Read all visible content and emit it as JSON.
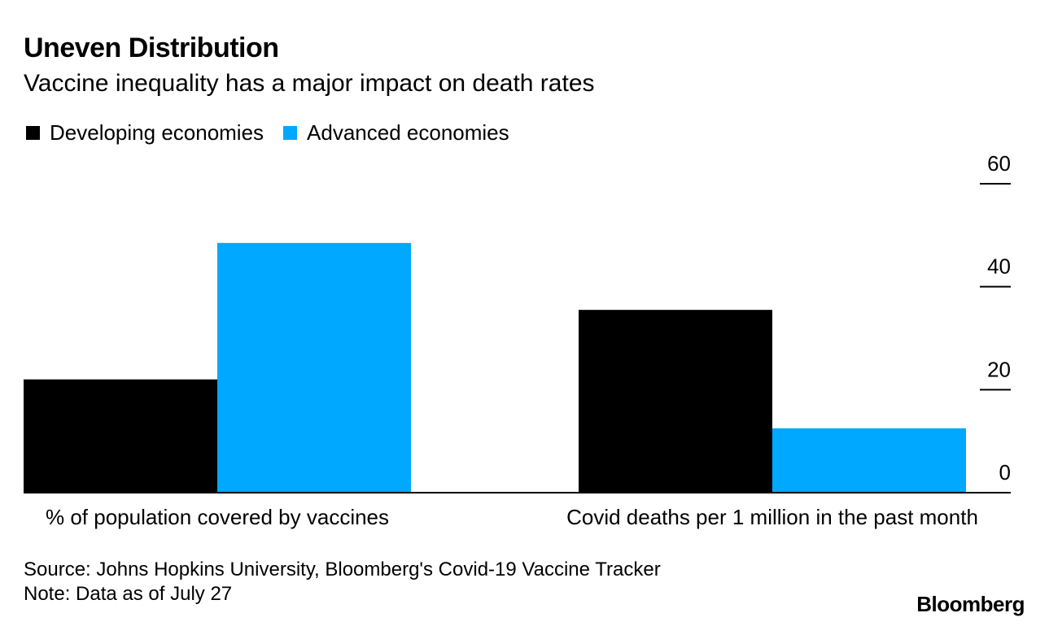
{
  "header": {
    "title": "Uneven Distribution",
    "subtitle": "Vaccine inequality has a major impact on death rates"
  },
  "legend": {
    "items": [
      {
        "label": "Developing economies",
        "color": "#000000"
      },
      {
        "label": "Advanced economies",
        "color": "#00a8ff"
      }
    ]
  },
  "chart_data": {
    "type": "bar",
    "categories": [
      "% of population covered by vaccines",
      "Covid deaths per 1 million in the past month"
    ],
    "series": [
      {
        "name": "Developing economies",
        "color": "#000000",
        "values": [
          22,
          35.5
        ]
      },
      {
        "name": "Advanced economies",
        "color": "#00a8ff",
        "values": [
          48.5,
          12.5
        ]
      }
    ],
    "yticks": [
      0,
      20,
      40,
      60
    ],
    "ylim": [
      0,
      60
    ],
    "y_axis_position": "right",
    "grid": false,
    "legend_position": "top-left"
  },
  "footer": {
    "source": "Source: Johns Hopkins University, Bloomberg's Covid-19 Vaccine Tracker",
    "note": "Note: Data as of July 27",
    "brand": "Bloomberg"
  }
}
